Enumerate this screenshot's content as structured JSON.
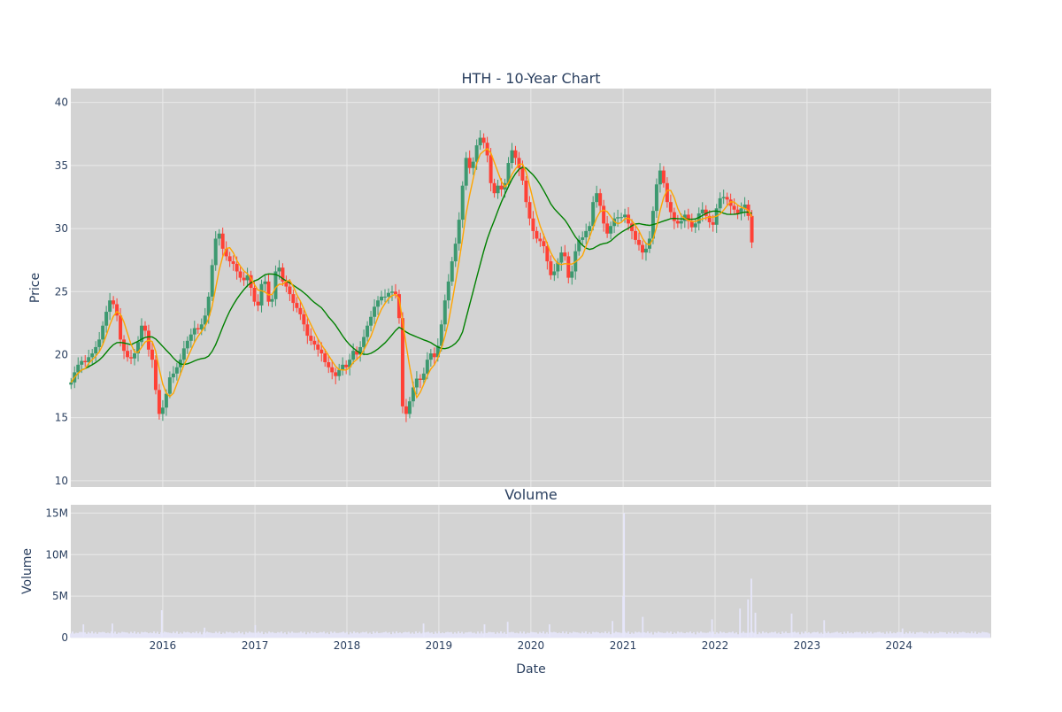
{
  "page": {
    "background": "#ffffff",
    "plot_background": "#d3d3d3",
    "grid_color": "#e9e9e9"
  },
  "chart_data": [
    {
      "type": "candlestick",
      "title": "HTH - 10-Year Chart",
      "ylabel": "Price",
      "xlabel": "",
      "ylim": [
        9.5,
        41.1
      ],
      "xlim": [
        "2015-01-01",
        "2025-01-01"
      ],
      "x_tick_labels": [
        "2016",
        "2017",
        "2018",
        "2019",
        "2020",
        "2021",
        "2022",
        "2023",
        "2024"
      ],
      "y_ticks": [
        10,
        15,
        20,
        25,
        30,
        35,
        40
      ],
      "grid": true,
      "colors": {
        "increasing": "#3d9970",
        "decreasing": "#ff4136",
        "ma_short": "#ffa500",
        "ma_long": "#008000"
      },
      "series": [
        {
          "date_step_days": 14,
          "dates_start": "2015-01-02",
          "close": [
            17.8,
            18.6,
            19.2,
            19.5,
            19.4,
            19.8,
            20.1,
            20.6,
            21.2,
            22.3,
            23.4,
            24.3,
            24.0,
            23.1,
            21.2,
            20.3,
            19.8,
            19.7,
            20.1,
            21.0,
            22.3,
            21.9,
            20.4,
            19.6,
            17.2,
            15.3,
            15.8,
            16.9,
            18.2,
            18.5,
            19.0,
            19.6,
            20.5,
            21.1,
            21.6,
            22.1,
            22.0,
            22.4,
            23.1,
            24.6,
            27.1,
            29.2,
            29.6,
            28.4,
            27.8,
            27.4,
            27.2,
            26.6,
            26.1,
            25.9,
            26.3,
            25.3,
            24.2,
            23.9,
            25.6,
            25.8,
            24.2,
            24.4,
            26.6,
            26.9,
            25.8,
            25.4,
            24.8,
            24.1,
            23.7,
            23.2,
            22.4,
            21.5,
            21.1,
            20.8,
            20.4,
            20.1,
            19.4,
            19.0,
            18.6,
            18.3,
            18.8,
            19.2,
            19.0,
            19.6,
            20.3,
            20.0,
            20.6,
            21.4,
            22.3,
            23.0,
            23.8,
            24.3,
            24.6,
            24.6,
            24.9,
            25.0,
            24.8,
            22.9,
            15.9,
            15.3,
            16.3,
            17.4,
            18.1,
            18.0,
            18.5,
            19.6,
            20.1,
            19.8,
            20.7,
            22.4,
            24.3,
            25.8,
            27.4,
            28.8,
            30.7,
            33.4,
            35.6,
            34.8,
            35.3,
            36.6,
            37.2,
            36.8,
            35.8,
            33.6,
            32.8,
            33.4,
            33.1,
            33.6,
            35.2,
            36.2,
            35.6,
            34.8,
            33.8,
            32.1,
            30.8,
            29.8,
            29.2,
            29.0,
            28.6,
            27.4,
            26.3,
            26.6,
            27.3,
            28.1,
            27.8,
            26.1,
            26.6,
            28.2,
            29.1,
            29.3,
            29.8,
            30.2,
            32.1,
            32.8,
            31.8,
            30.4,
            29.6,
            30.2,
            30.8,
            30.9,
            30.9,
            31.1,
            30.4,
            29.8,
            29.1,
            28.7,
            28.1,
            28.4,
            29.2,
            31.4,
            33.5,
            34.6,
            33.6,
            32.1,
            31.3,
            30.6,
            30.4,
            30.6,
            31.1,
            30.6,
            30.1,
            30.4,
            31.2,
            31.5,
            31.0,
            30.5,
            30.3,
            31.6,
            32.4,
            32.5,
            32.3,
            31.8,
            31.5,
            31.2,
            31.6,
            31.9,
            31.0,
            28.9
          ]
        },
        {
          "name": "",
          "role": "moving-average-short",
          "window": 5
        },
        {
          "name": "",
          "role": "moving-average-long",
          "window": 18
        }
      ]
    },
    {
      "type": "bar",
      "title": "Volume",
      "ylabel": "Volume",
      "xlabel": "Date",
      "ylim": [
        0,
        16000000
      ],
      "y_ticks": [
        0,
        5000000,
        10000000,
        15000000
      ],
      "y_tick_labels": [
        "0",
        "5M",
        "10M",
        "15M"
      ],
      "x_tick_labels": [
        "2016",
        "2017",
        "2018",
        "2019",
        "2020",
        "2021",
        "2022",
        "2023",
        "2024"
      ],
      "xlim": [
        "2015-01-01",
        "2025-01-01"
      ],
      "color": "#e6e6fa",
      "spikes": [
        {
          "date": "2015-02-20",
          "value": 1600000
        },
        {
          "date": "2015-06-15",
          "value": 1700000
        },
        {
          "date": "2015-12-28",
          "value": 3300000
        },
        {
          "date": "2016-06-15",
          "value": 1200000
        },
        {
          "date": "2017-01-02",
          "value": 1500000
        },
        {
          "date": "2018-11-01",
          "value": 1700000
        },
        {
          "date": "2019-07-01",
          "value": 1600000
        },
        {
          "date": "2019-10-01",
          "value": 1900000
        },
        {
          "date": "2020-03-15",
          "value": 1600000
        },
        {
          "date": "2020-11-20",
          "value": 2000000
        },
        {
          "date": "2021-01-01",
          "value": 5000000
        },
        {
          "date": "2021-01-05",
          "value": 15000000
        },
        {
          "date": "2021-03-20",
          "value": 2500000
        },
        {
          "date": "2021-12-20",
          "value": 2200000
        },
        {
          "date": "2022-04-10",
          "value": 3500000
        },
        {
          "date": "2022-05-12",
          "value": 4600000
        },
        {
          "date": "2022-05-25",
          "value": 7100000
        },
        {
          "date": "2022-06-10",
          "value": 3000000
        },
        {
          "date": "2022-11-01",
          "value": 2900000
        },
        {
          "date": "2023-03-10",
          "value": 2100000
        },
        {
          "date": "2024-01-15",
          "value": 1100000
        }
      ]
    }
  ]
}
